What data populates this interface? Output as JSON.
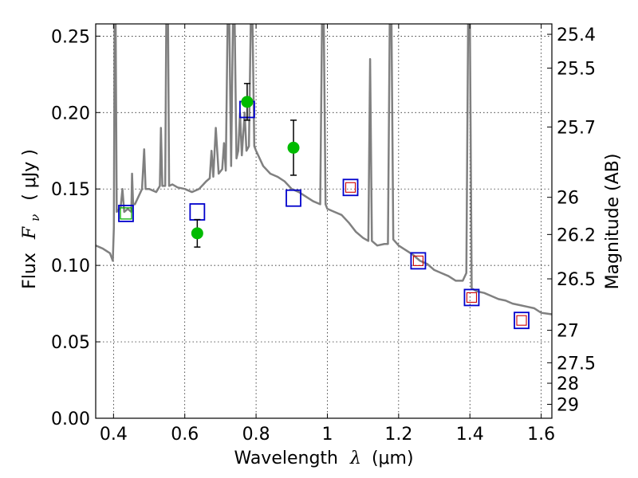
{
  "chart_data": {
    "type": "scatter",
    "xlabel_text": "Wavelength",
    "xlabel_symbol": "λ",
    "xlabel_unit": "(μm)",
    "ylabel_text": "Flux",
    "ylabel_symbol": "F",
    "ylabel_subscript": "ν",
    "ylabel_unit": "( μJy )",
    "y2label": "Magnitude (AB)",
    "xlim": [
      0.35,
      1.63
    ],
    "ylim": [
      0.0,
      0.258
    ],
    "xticks": [
      "0.4",
      "0.6",
      "0.8",
      "1",
      "1.2",
      "1.4",
      "1.6"
    ],
    "yticks": [
      "0.00",
      "0.05",
      "0.10",
      "0.15",
      "0.20",
      "0.25"
    ],
    "mag_ticks": [
      "25.4",
      "25.5",
      "25.7",
      "26",
      "26.2",
      "26.5",
      "27",
      "27.5",
      "28",
      "29"
    ],
    "grid": true,
    "series": [
      {
        "marker": "line",
        "color": "#808080",
        "points": [
          [
            0.35,
            0.113
          ],
          [
            0.37,
            0.111
          ],
          [
            0.39,
            0.108
          ],
          [
            0.398,
            0.103
          ],
          [
            0.401,
            0.125
          ],
          [
            0.403,
            0.258
          ],
          [
            0.406,
            0.258
          ],
          [
            0.409,
            0.135
          ],
          [
            0.42,
            0.138
          ],
          [
            0.425,
            0.15
          ],
          [
            0.43,
            0.135
          ],
          [
            0.44,
            0.137
          ],
          [
            0.45,
            0.135
          ],
          [
            0.452,
            0.16
          ],
          [
            0.455,
            0.14
          ],
          [
            0.46,
            0.14
          ],
          [
            0.47,
            0.145
          ],
          [
            0.48,
            0.15
          ],
          [
            0.486,
            0.176
          ],
          [
            0.49,
            0.15
          ],
          [
            0.5,
            0.15
          ],
          [
            0.52,
            0.148
          ],
          [
            0.53,
            0.152
          ],
          [
            0.533,
            0.19
          ],
          [
            0.537,
            0.152
          ],
          [
            0.545,
            0.152
          ],
          [
            0.548,
            0.258
          ],
          [
            0.553,
            0.258
          ],
          [
            0.556,
            0.152
          ],
          [
            0.565,
            0.153
          ],
          [
            0.58,
            0.151
          ],
          [
            0.6,
            0.15
          ],
          [
            0.62,
            0.148
          ],
          [
            0.64,
            0.15
          ],
          [
            0.66,
            0.155
          ],
          [
            0.67,
            0.157
          ],
          [
            0.675,
            0.175
          ],
          [
            0.68,
            0.158
          ],
          [
            0.687,
            0.19
          ],
          [
            0.695,
            0.16
          ],
          [
            0.705,
            0.163
          ],
          [
            0.71,
            0.18
          ],
          [
            0.715,
            0.162
          ],
          [
            0.72,
            0.258
          ],
          [
            0.725,
            0.258
          ],
          [
            0.73,
            0.165
          ],
          [
            0.735,
            0.258
          ],
          [
            0.74,
            0.258
          ],
          [
            0.745,
            0.17
          ],
          [
            0.75,
            0.175
          ],
          [
            0.755,
            0.2
          ],
          [
            0.76,
            0.172
          ],
          [
            0.768,
            0.2
          ],
          [
            0.773,
            0.175
          ],
          [
            0.78,
            0.178
          ],
          [
            0.785,
            0.258
          ],
          [
            0.79,
            0.258
          ],
          [
            0.795,
            0.178
          ],
          [
            0.8,
            0.175
          ],
          [
            0.82,
            0.165
          ],
          [
            0.84,
            0.16
          ],
          [
            0.86,
            0.158
          ],
          [
            0.88,
            0.155
          ],
          [
            0.9,
            0.15
          ],
          [
            0.92,
            0.148
          ],
          [
            0.94,
            0.145
          ],
          [
            0.96,
            0.142
          ],
          [
            0.98,
            0.14
          ],
          [
            0.985,
            0.258
          ],
          [
            0.99,
            0.258
          ],
          [
            0.995,
            0.14
          ],
          [
            1.0,
            0.137
          ],
          [
            1.02,
            0.135
          ],
          [
            1.04,
            0.133
          ],
          [
            1.06,
            0.128
          ],
          [
            1.08,
            0.122
          ],
          [
            1.1,
            0.118
          ],
          [
            1.115,
            0.116
          ],
          [
            1.12,
            0.235
          ],
          [
            1.125,
            0.116
          ],
          [
            1.14,
            0.113
          ],
          [
            1.16,
            0.114
          ],
          [
            1.17,
            0.114
          ],
          [
            1.175,
            0.258
          ],
          [
            1.18,
            0.258
          ],
          [
            1.185,
            0.117
          ],
          [
            1.2,
            0.113
          ],
          [
            1.22,
            0.11
          ],
          [
            1.24,
            0.107
          ],
          [
            1.26,
            0.103
          ],
          [
            1.28,
            0.101
          ],
          [
            1.3,
            0.097
          ],
          [
            1.32,
            0.095
          ],
          [
            1.34,
            0.093
          ],
          [
            1.36,
            0.09
          ],
          [
            1.38,
            0.09
          ],
          [
            1.39,
            0.095
          ],
          [
            1.395,
            0.258
          ],
          [
            1.4,
            0.258
          ],
          [
            1.405,
            0.085
          ],
          [
            1.42,
            0.083
          ],
          [
            1.44,
            0.082
          ],
          [
            1.46,
            0.08
          ],
          [
            1.48,
            0.078
          ],
          [
            1.5,
            0.077
          ],
          [
            1.52,
            0.075
          ],
          [
            1.54,
            0.074
          ],
          [
            1.56,
            0.073
          ],
          [
            1.58,
            0.072
          ],
          [
            1.6,
            0.069
          ],
          [
            1.63,
            0.068
          ]
        ]
      },
      {
        "marker": "blue-square",
        "color": "#0000cc",
        "points": [
          [
            0.435,
            0.134
          ],
          [
            0.635,
            0.135
          ],
          [
            0.775,
            0.202
          ],
          [
            0.905,
            0.144
          ],
          [
            1.065,
            0.151
          ],
          [
            1.255,
            0.103
          ],
          [
            1.405,
            0.079
          ],
          [
            1.545,
            0.064
          ]
        ]
      },
      {
        "marker": "green-square",
        "color": "#00aa00",
        "points": [
          [
            0.435,
            0.134
          ]
        ]
      },
      {
        "marker": "red-square",
        "color": "#cc0000",
        "points": [
          [
            1.065,
            0.151
          ],
          [
            1.255,
            0.103
          ],
          [
            1.405,
            0.079
          ],
          [
            1.545,
            0.064
          ]
        ]
      },
      {
        "marker": "green-circle",
        "color": "#00bb00",
        "points": [
          [
            0.635,
            0.121
          ],
          [
            0.775,
            0.207
          ],
          [
            0.905,
            0.177
          ]
        ],
        "errors": [
          0.009,
          0.012,
          0.018
        ]
      }
    ]
  }
}
